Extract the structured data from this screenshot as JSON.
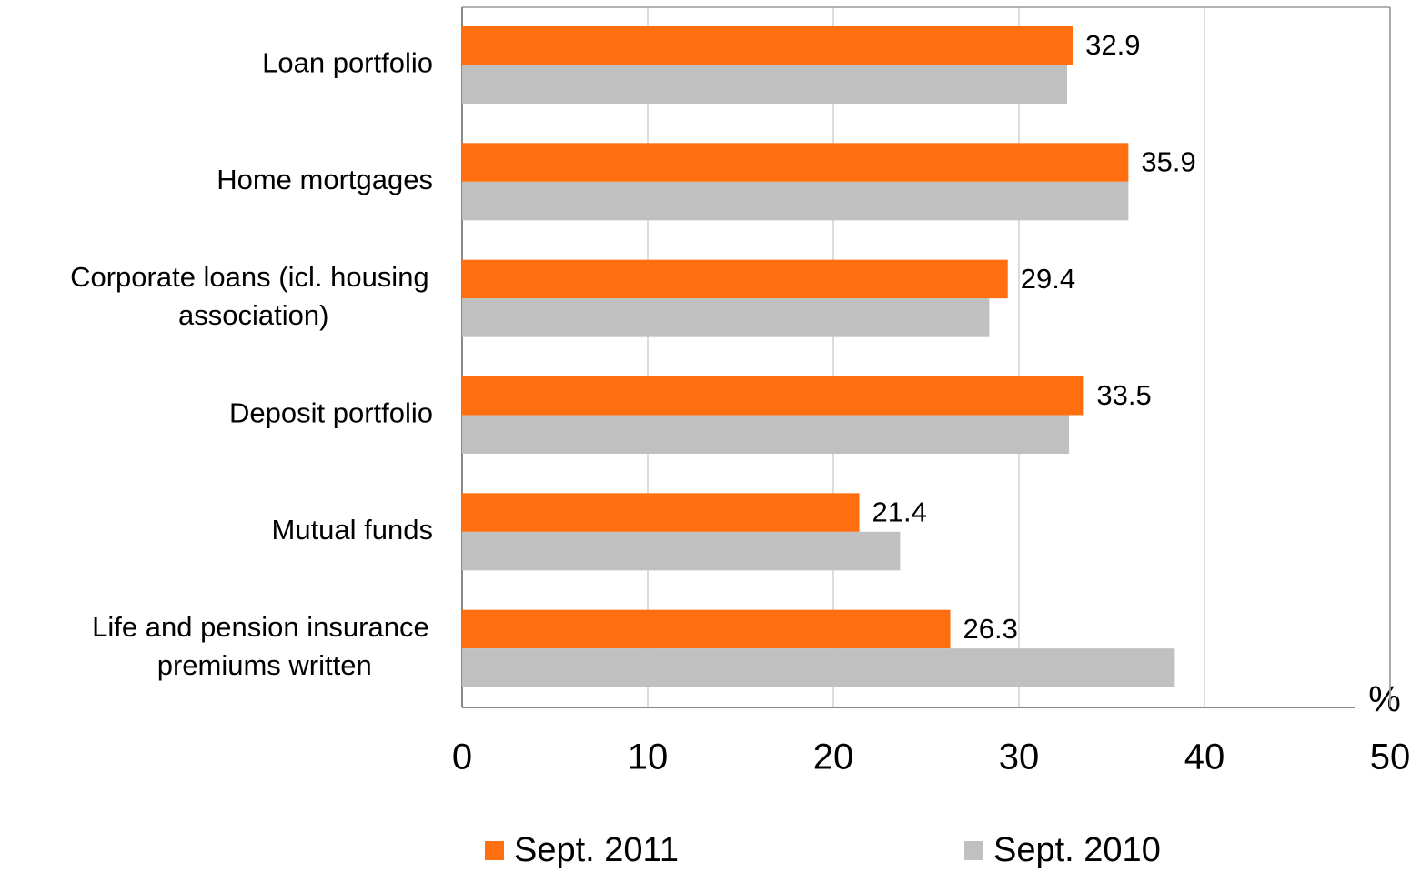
{
  "chart_data": {
    "type": "bar",
    "orientation": "horizontal",
    "categories": [
      "Loan portfolio",
      "Home mortgages",
      "Corporate loans (icl. housing association)",
      "Deposit portfolio",
      "Mutual funds",
      "Life and pension insurance premiums written"
    ],
    "series": [
      {
        "name": "Sept. 2011",
        "color": "#ff6f0f",
        "values": [
          32.9,
          35.9,
          29.4,
          33.5,
          21.4,
          26.3
        ]
      },
      {
        "name": "Sept. 2010",
        "color": "#c0c0c0",
        "values": [
          32.6,
          35.9,
          28.4,
          32.7,
          23.6,
          38.4
        ]
      }
    ],
    "data_labels_series": 0,
    "xlabel": "%",
    "xlim": [
      0,
      50
    ],
    "xticks": [
      0,
      10,
      20,
      30,
      40,
      50
    ],
    "grid": true,
    "legend": "bottom"
  }
}
